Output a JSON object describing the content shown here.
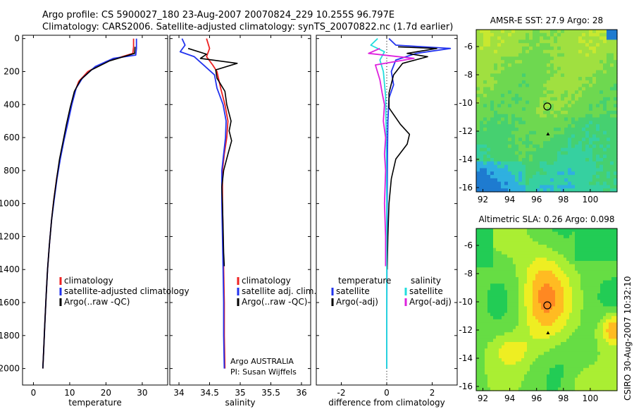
{
  "header": {
    "line1": "Argo profile: CS 5900027_180 23-Aug-2007 20070824_229 10.255S 96.797E",
    "line2": "Climatology: CARS2006. Satellite-adjusted climatology: synTS_20070822.nc (1.7d earlier)"
  },
  "side_label": "CSIRO 30-Aug-2007 10:32:10",
  "colors": {
    "clim": "#ee2222",
    "sat": "#2233ee",
    "argo": "#000000",
    "sat_sal": "#22dddd",
    "argo_sal": "#dd22dd"
  },
  "chart_data": [
    {
      "type": "line",
      "id": "temperature",
      "xlabel": "temperature",
      "xlim": [
        -3,
        37
      ],
      "xticks": [
        0,
        10,
        20,
        30
      ],
      "ylim": [
        2100,
        0
      ],
      "yticks": [
        0,
        200,
        400,
        600,
        800,
        1000,
        1200,
        1400,
        1600,
        1800,
        2000
      ],
      "legend": [
        "climatology",
        "satellite-adjusted climatology",
        "Argo(..raw -QC)"
      ],
      "series": [
        {
          "name": "climatology",
          "role": "clim",
          "points": [
            [
              27.6,
              0
            ],
            [
              27.6,
              50
            ],
            [
              27.4,
              90
            ],
            [
              20,
              140
            ],
            [
              15,
              200
            ],
            [
              12.5,
              260
            ],
            [
              11.3,
              330
            ],
            [
              10.3,
              420
            ],
            [
              9.3,
              520
            ],
            [
              8.3,
              620
            ],
            [
              7.3,
              730
            ],
            [
              6.4,
              850
            ],
            [
              5.6,
              980
            ],
            [
              5,
              1100
            ],
            [
              4.4,
              1250
            ],
            [
              3.9,
              1400
            ],
            [
              3.5,
              1560
            ],
            [
              3.1,
              1750
            ],
            [
              2.8,
              1900
            ],
            [
              2.6,
              2000
            ]
          ]
        },
        {
          "name": "satellite-adjusted climatology",
          "role": "sat",
          "points": [
            [
              28.4,
              0
            ],
            [
              28.4,
              60
            ],
            [
              28.2,
              100
            ],
            [
              22,
              120
            ],
            [
              17,
              170
            ],
            [
              13.5,
              240
            ],
            [
              11.8,
              300
            ],
            [
              10.6,
              400
            ],
            [
              9.5,
              510
            ],
            [
              8.4,
              620
            ],
            [
              7.4,
              730
            ],
            [
              6.5,
              850
            ],
            [
              5.7,
              980
            ],
            [
              5,
              1100
            ],
            [
              4.4,
              1250
            ],
            [
              3.9,
              1400
            ],
            [
              3.5,
              1560
            ],
            [
              3.1,
              1750
            ],
            [
              2.8,
              1900
            ],
            [
              2.6,
              2000
            ]
          ]
        },
        {
          "name": "Argo(..raw -QC)",
          "role": "argo",
          "points": [
            [
              28,
              50
            ],
            [
              27.9,
              90
            ],
            [
              21,
              135
            ],
            [
              16,
              190
            ],
            [
              13,
              250
            ],
            [
              11.3,
              320
            ],
            [
              10.1,
              420
            ],
            [
              9.1,
              520
            ],
            [
              8.2,
              620
            ],
            [
              7.2,
              730
            ],
            [
              6.4,
              850
            ],
            [
              5.6,
              980
            ],
            [
              5,
              1100
            ],
            [
              4.4,
              1250
            ],
            [
              3.9,
              1400
            ],
            [
              3.5,
              1560
            ],
            [
              3.1,
              1750
            ],
            [
              2.8,
              1900
            ],
            [
              2.6,
              2000
            ]
          ]
        }
      ]
    },
    {
      "type": "line",
      "id": "salinity",
      "xlabel": "salinity",
      "xlim": [
        33.85,
        36.15
      ],
      "xticks": [
        "34",
        "34.5",
        "35",
        "35.5",
        "36"
      ],
      "ylim": [
        2100,
        0
      ],
      "legend": [
        "climatology",
        "satellite adj. clim.",
        "Argo(..raw -QC)"
      ],
      "annotation": [
        "Argo AUSTRALIA",
        "PI: Susan Wijffels"
      ],
      "series": [
        {
          "name": "climatology",
          "role": "clim",
          "points": [
            [
              34.45,
              0
            ],
            [
              34.5,
              60
            ],
            [
              34.45,
              110
            ],
            [
              34.55,
              160
            ],
            [
              34.62,
              200
            ],
            [
              34.68,
              300
            ],
            [
              34.75,
              400
            ],
            [
              34.8,
              500
            ],
            [
              34.78,
              600
            ],
            [
              34.74,
              700
            ],
            [
              34.71,
              800
            ],
            [
              34.71,
              1000
            ],
            [
              34.72,
              1200
            ],
            [
              34.73,
              1400
            ],
            [
              34.74,
              1600
            ],
            [
              34.74,
              1800
            ],
            [
              34.75,
              2000
            ]
          ]
        },
        {
          "name": "satellite adj. clim.",
          "role": "sat",
          "points": [
            [
              34.05,
              0
            ],
            [
              34.1,
              40
            ],
            [
              34.02,
              80
            ],
            [
              34.25,
              110
            ],
            [
              34.4,
              160
            ],
            [
              34.58,
              220
            ],
            [
              34.62,
              300
            ],
            [
              34.72,
              400
            ],
            [
              34.77,
              500
            ],
            [
              34.76,
              600
            ],
            [
              34.73,
              700
            ],
            [
              34.7,
              800
            ],
            [
              34.7,
              1000
            ],
            [
              34.71,
              1200
            ],
            [
              34.72,
              1400
            ],
            [
              34.73,
              1600
            ],
            [
              34.73,
              1800
            ],
            [
              34.74,
              2000
            ]
          ]
        },
        {
          "name": "Argo(..raw -QC)",
          "role": "argo",
          "points": [
            [
              34.15,
              60
            ],
            [
              34.45,
              95
            ],
            [
              34.35,
              120
            ],
            [
              34.95,
              150
            ],
            [
              34.6,
              190
            ],
            [
              34.62,
              240
            ],
            [
              34.75,
              320
            ],
            [
              34.78,
              400
            ],
            [
              34.85,
              500
            ],
            [
              34.82,
              560
            ],
            [
              34.86,
              620
            ],
            [
              34.8,
              700
            ],
            [
              34.73,
              800
            ],
            [
              34.7,
              900
            ],
            [
              34.71,
              1000
            ],
            [
              34.72,
              1150
            ],
            [
              34.73,
              1300
            ],
            [
              34.74,
              1380
            ]
          ]
        }
      ]
    },
    {
      "type": "line",
      "id": "difference",
      "xlabel": "difference from climatology",
      "xlim": [
        -3.1,
        3.1
      ],
      "xticks": [
        -2,
        0,
        2
      ],
      "ylim": [
        2100,
        0
      ],
      "legend_temperature": {
        "title": "temperature",
        "items": [
          "satellite",
          "Argo(-adj)"
        ]
      },
      "legend_salinity": {
        "title": "salinity",
        "items": [
          "satellite",
          "Argo(-adj)"
        ]
      },
      "series": [
        {
          "name": "temperature satellite",
          "role": "sat",
          "points": [
            [
              0.1,
              0
            ],
            [
              0.4,
              40
            ],
            [
              2.8,
              60
            ],
            [
              1.3,
              90
            ],
            [
              0.4,
              130
            ],
            [
              0.2,
              200
            ],
            [
              0.3,
              280
            ],
            [
              0.1,
              360
            ],
            [
              0.05,
              500
            ],
            [
              0.03,
              700
            ],
            [
              0.02,
              1000
            ],
            [
              0.01,
              1400
            ],
            [
              0.0,
              1800
            ],
            [
              0,
              2000
            ]
          ]
        },
        {
          "name": "temperature Argo(-adj)",
          "role": "argo",
          "points": [
            [
              0.5,
              50
            ],
            [
              2.2,
              60
            ],
            [
              0.9,
              90
            ],
            [
              1.8,
              110
            ],
            [
              0.7,
              150
            ],
            [
              0.3,
              220
            ],
            [
              0.1,
              330
            ],
            [
              0.1,
              420
            ],
            [
              0.6,
              520
            ],
            [
              1,
              580
            ],
            [
              0.9,
              640
            ],
            [
              0.4,
              730
            ],
            [
              0.2,
              850
            ],
            [
              0.1,
              1000
            ],
            [
              0.05,
              1200
            ],
            [
              0.02,
              1400
            ]
          ]
        },
        {
          "name": "salinity satellite",
          "role": "sat_sal",
          "points": [
            [
              -0.4,
              0
            ],
            [
              -0.7,
              40
            ],
            [
              -0.1,
              80
            ],
            [
              -0.3,
              130
            ],
            [
              -0.15,
              200
            ],
            [
              -0.05,
              350
            ],
            [
              -0.02,
              600
            ],
            [
              0,
              1000
            ],
            [
              0,
              1500
            ],
            [
              0,
              2000
            ]
          ]
        },
        {
          "name": "salinity Argo(-adj)",
          "role": "argo_sal",
          "points": [
            [
              -0.3,
              60
            ],
            [
              -0.8,
              90
            ],
            [
              1.2,
              120
            ],
            [
              -0.5,
              160
            ],
            [
              -0.3,
              250
            ],
            [
              -0.2,
              330
            ],
            [
              -0.1,
              400
            ],
            [
              -0.15,
              500
            ],
            [
              -0.05,
              600
            ],
            [
              -0.1,
              700
            ],
            [
              -0.05,
              800
            ],
            [
              -0.1,
              1000
            ],
            [
              -0.05,
              1200
            ],
            [
              -0.05,
              1380
            ]
          ]
        }
      ]
    },
    {
      "type": "heatmap",
      "id": "sst_map",
      "title": "AMSR-E SST: 27.9 Argo: 28",
      "xlim": [
        91.5,
        102
      ],
      "ylim": [
        -16.3,
        -4.8
      ],
      "xticks": [
        92,
        94,
        96,
        98,
        100
      ],
      "yticks": [
        -6,
        -8,
        -10,
        -12,
        -14,
        -16
      ],
      "argo_position": {
        "lon": 96.8,
        "lat": -10.25
      },
      "previous_position": {
        "lon": 96.85,
        "lat": -12.2
      },
      "palette": [
        "#1e7bd0",
        "#2fb0e0",
        "#36d0a0",
        "#46d070",
        "#6ed850",
        "#a0e040",
        "#c8e830"
      ]
    },
    {
      "type": "heatmap",
      "id": "sla_map",
      "title": "Altimetric SLA: 0.26 Argo: 0.098",
      "xlim": [
        91.5,
        102
      ],
      "ylim": [
        -16.3,
        -4.8
      ],
      "xticks": [
        92,
        94,
        96,
        98,
        100
      ],
      "yticks": [
        -6,
        -8,
        -10,
        -12,
        -14,
        -16
      ],
      "argo_position": {
        "lon": 96.8,
        "lat": -10.25
      },
      "previous_position": {
        "lon": 96.85,
        "lat": -12.2
      },
      "palette": [
        "#22cc55",
        "#66dd44",
        "#aaee33",
        "#eeee22",
        "#ffbb22",
        "#ff8822"
      ]
    }
  ]
}
